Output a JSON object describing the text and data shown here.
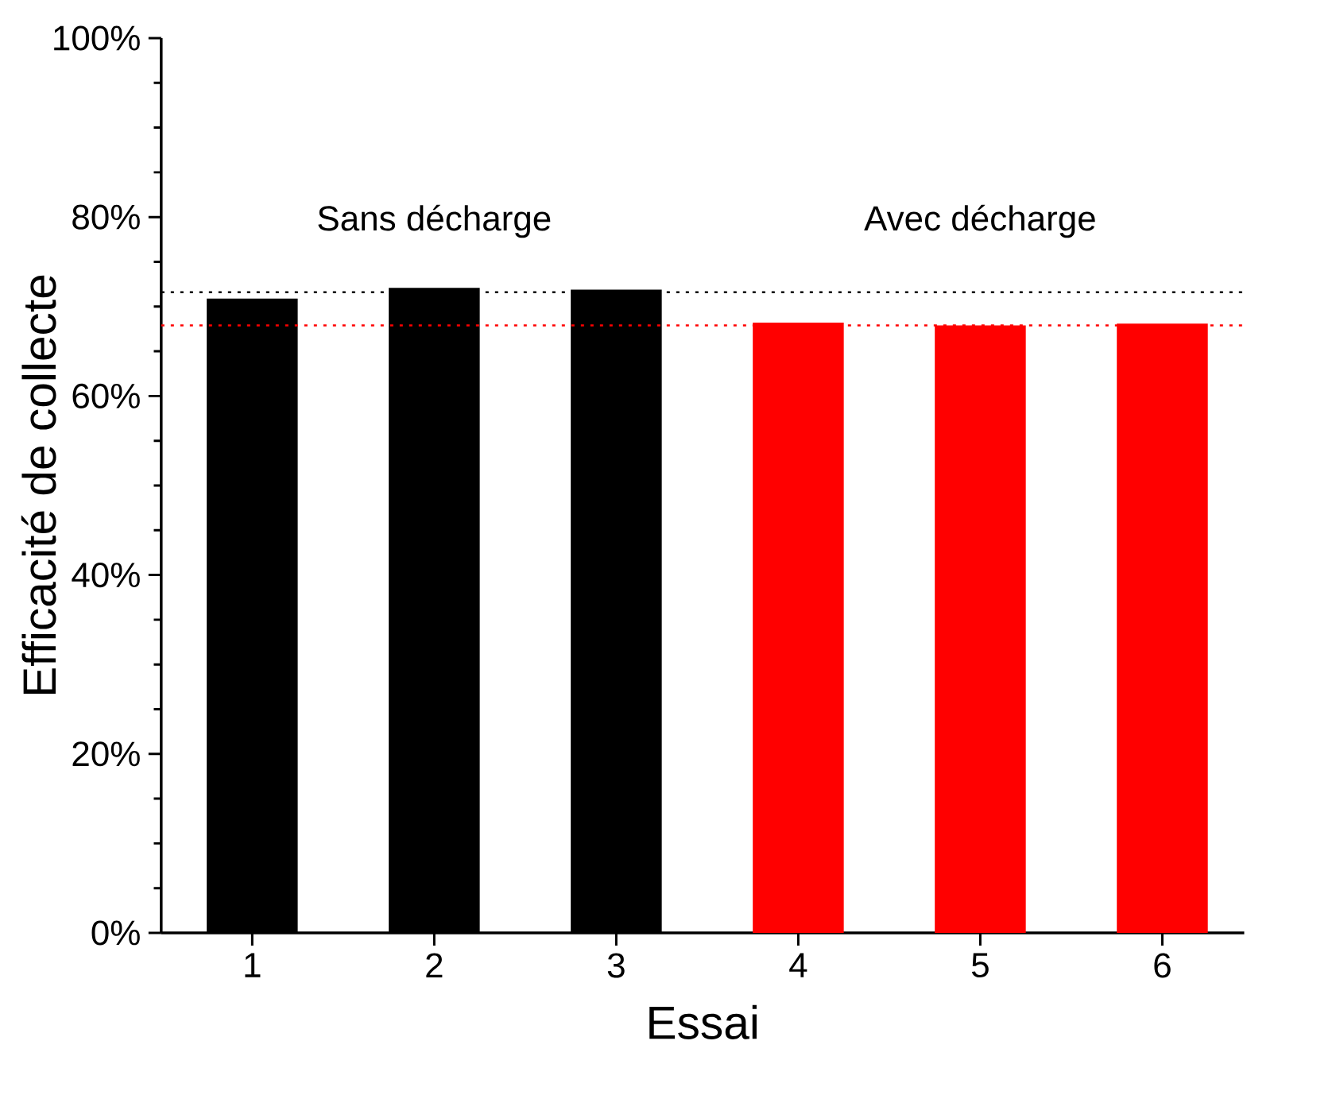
{
  "chart_data": {
    "type": "bar",
    "xlabel": "Essai",
    "ylabel": "Efficacité de collecte",
    "categories": [
      "1",
      "2",
      "3",
      "4",
      "5",
      "6"
    ],
    "values": [
      70.9,
      72.1,
      71.9,
      68.2,
      67.9,
      68.1
    ],
    "colors": [
      "#000000",
      "#000000",
      "#000000",
      "#ff0000",
      "#ff0000",
      "#ff0000"
    ],
    "ylim": [
      0,
      100
    ],
    "yticks": [
      {
        "value": 0,
        "label": "0%"
      },
      {
        "value": 20,
        "label": "20%"
      },
      {
        "value": 40,
        "label": "40%"
      },
      {
        "value": 60,
        "label": "60%"
      },
      {
        "value": 80,
        "label": "80%"
      },
      {
        "value": 100,
        "label": "100%"
      }
    ],
    "ref_lines": [
      {
        "axis": "y",
        "value": 71.6,
        "color": "#000000",
        "line_style": "dotted"
      },
      {
        "axis": "y",
        "value": 67.9,
        "color": "#ff0000",
        "line_style": "dotted"
      }
    ],
    "annotations": [
      "Sans décharge",
      "Avec décharge"
    ]
  }
}
